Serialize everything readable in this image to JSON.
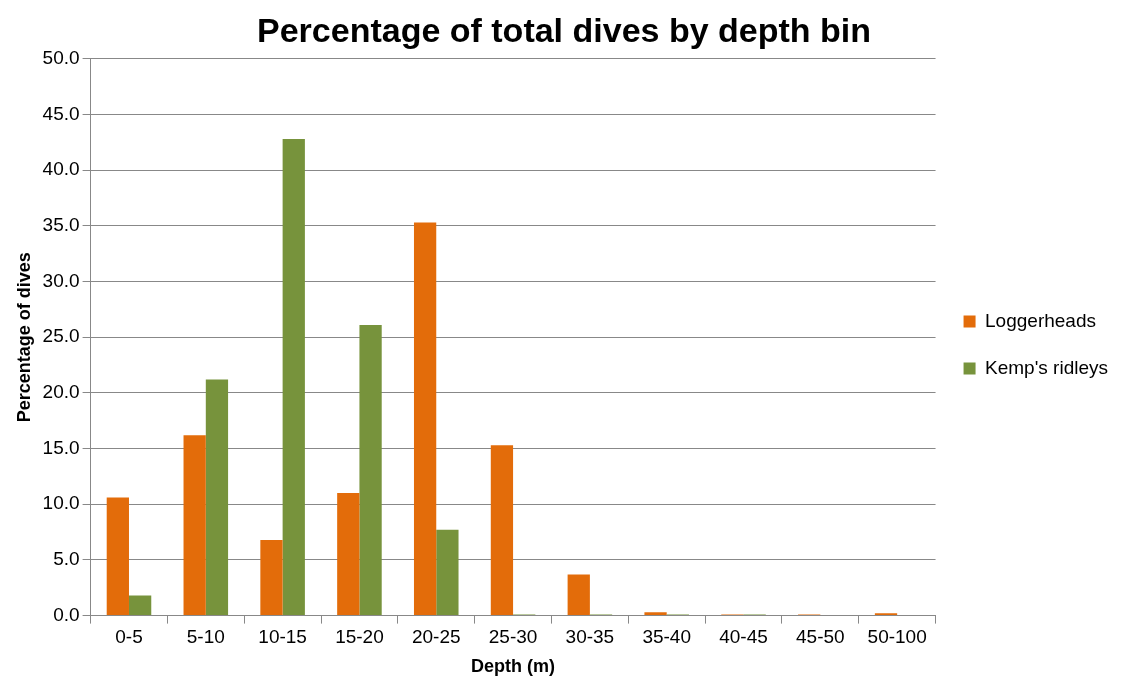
{
  "chart_data": {
    "type": "bar",
    "title": "Percentage of total dives by depth bin",
    "xlabel": "Depth (m)",
    "ylabel": "Percentage of dives",
    "categories": [
      "0-5",
      "5-10",
      "10-15",
      "15-20",
      "20-25",
      "25-30",
      "30-35",
      "35-40",
      "40-45",
      "45-50",
      "50-100"
    ],
    "series": [
      {
        "name": "Loggerheads",
        "color": "#e36c0a",
        "values": [
          10.6,
          16.2,
          6.8,
          11.0,
          35.3,
          15.3,
          3.7,
          0.3,
          0.1,
          0.1,
          0.2
        ]
      },
      {
        "name": "Kemp's ridleys",
        "color": "#77933c",
        "values": [
          1.8,
          21.2,
          42.8,
          26.1,
          7.7,
          0.1,
          0.1,
          0.1,
          0.1,
          0,
          0
        ]
      }
    ],
    "ylim": [
      0,
      50
    ],
    "yticks": [
      {
        "value": 0,
        "label": "0.0"
      },
      {
        "value": 5,
        "label": "5.0"
      },
      {
        "value": 10,
        "label": "10.0"
      },
      {
        "value": 15,
        "label": "15.0"
      },
      {
        "value": 20,
        "label": "20.0"
      },
      {
        "value": 25,
        "label": "25.0"
      },
      {
        "value": 30,
        "label": "30.0"
      },
      {
        "value": 35,
        "label": "35.0"
      },
      {
        "value": 40,
        "label": "40.0"
      },
      {
        "value": 45,
        "label": "45.0"
      },
      {
        "value": 50,
        "label": "50.0"
      }
    ],
    "grid": "y",
    "legend": "right"
  }
}
